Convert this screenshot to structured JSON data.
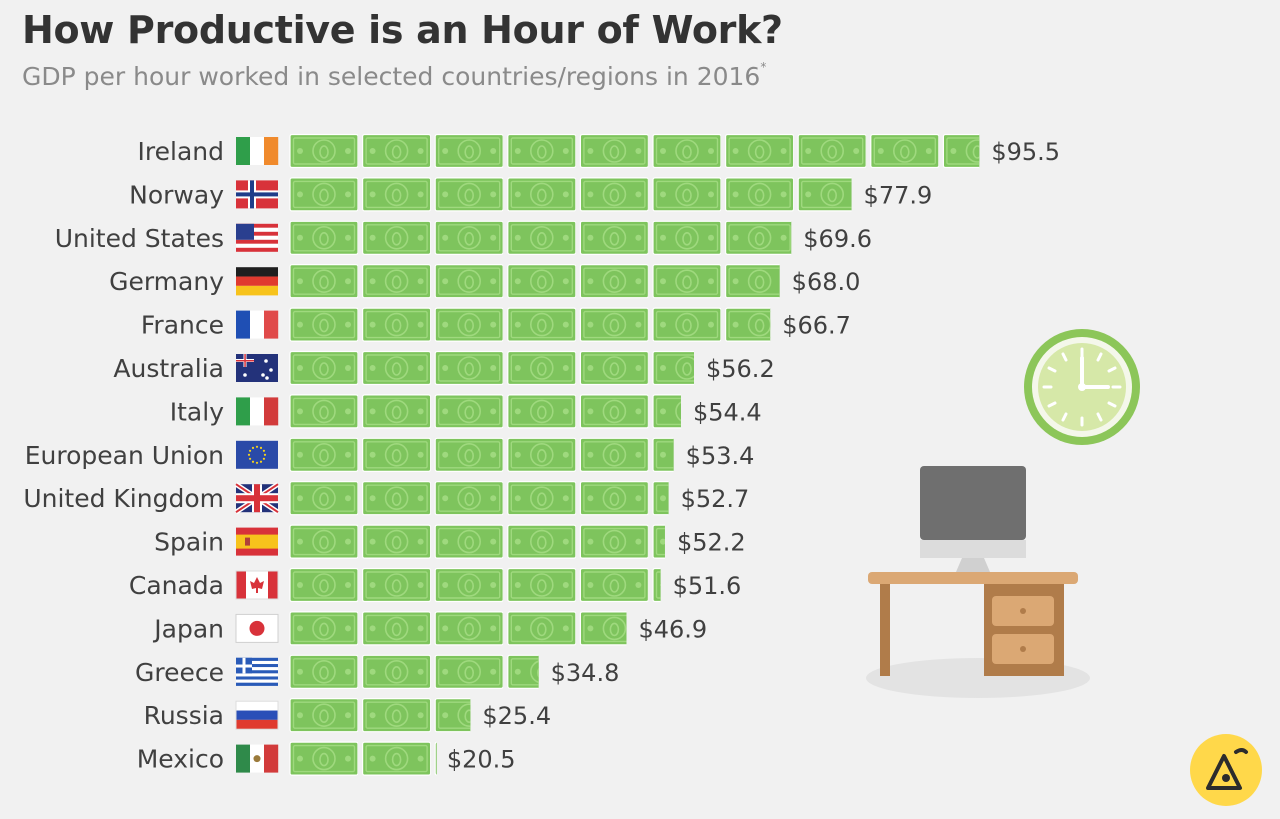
{
  "title": "How Productive is an Hour of Work?",
  "subtitle": "GDP per hour worked in selected countries/regions in 2016",
  "subtitle_note_mark": "*",
  "colors": {
    "bill_fill": "#7ec45d",
    "bill_light": "#9fd97e",
    "bill_border": "#ffffff",
    "clock_face": "#d6e8a8",
    "clock_ring": "#8cc659",
    "desk": "#dba874",
    "desk_dark": "#b07c4a",
    "monitor": "#6f6f6f"
  },
  "chart_data": {
    "type": "bar",
    "bar_style": "pictogram-banknotes",
    "unit_per_bill": 10,
    "categories": [
      "Ireland",
      "Norway",
      "United States",
      "Germany",
      "France",
      "Australia",
      "Italy",
      "European Union",
      "United Kingdom",
      "Spain",
      "Canada",
      "Japan",
      "Greece",
      "Russia",
      "Mexico"
    ],
    "values": [
      95.5,
      77.9,
      69.6,
      68.0,
      66.7,
      56.2,
      54.4,
      53.4,
      52.7,
      52.2,
      51.6,
      46.9,
      34.8,
      25.4,
      20.5
    ],
    "value_labels": [
      "$95.5",
      "$77.9",
      "$69.6",
      "$68.0",
      "$66.7",
      "$56.2",
      "$54.4",
      "$53.4",
      "$52.7",
      "$52.2",
      "$51.6",
      "$46.9",
      "$34.8",
      "$25.4",
      "$20.5"
    ],
    "flag_icons": [
      "flag-ireland-icon",
      "flag-norway-icon",
      "flag-united-states-icon",
      "flag-germany-icon",
      "flag-france-icon",
      "flag-australia-icon",
      "flag-italy-icon",
      "flag-european-union-icon",
      "flag-united-kingdom-icon",
      "flag-spain-icon",
      "flag-canada-icon",
      "flag-japan-icon",
      "flag-greece-icon",
      "flag-russia-icon",
      "flag-mexico-icon"
    ],
    "xlabel": "",
    "ylabel": "",
    "xlim": [
      0,
      100
    ]
  },
  "illustration_icons": [
    "clock-icon",
    "desk-computer-icon",
    "brand-logo-icon"
  ]
}
